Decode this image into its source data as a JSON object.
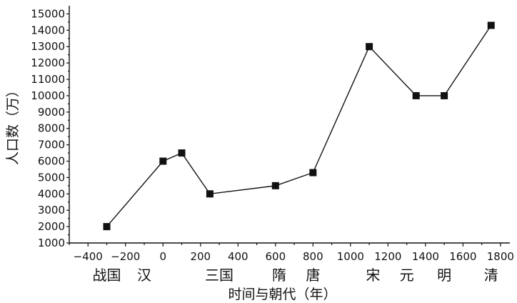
{
  "chart_data": {
    "type": "line",
    "title": "",
    "xlabel": "时间与朝代（年）",
    "ylabel": "人口数（万）",
    "xlim": [
      -500,
      1850
    ],
    "ylim": [
      1000,
      15500
    ],
    "x_ticks": [
      -400,
      -200,
      0,
      200,
      400,
      600,
      800,
      1000,
      1200,
      1400,
      1600,
      1800
    ],
    "y_ticks": [
      1000,
      2000,
      3000,
      4000,
      5000,
      6000,
      7000,
      8000,
      9000,
      10000,
      11000,
      12000,
      13000,
      14000,
      15000
    ],
    "grid": false,
    "legend": "none",
    "series": [
      {
        "x": [
          -300,
          0,
          100,
          250,
          600,
          800,
          1100,
          1350,
          1500,
          1750
        ],
        "y": [
          2000,
          6000,
          6500,
          4000,
          4500,
          5300,
          13000,
          10000,
          10000,
          14300
        ]
      }
    ],
    "era_labels": [
      {
        "text": "战国",
        "x": -300
      },
      {
        "text": "汉",
        "x": -100
      },
      {
        "text": "三国",
        "x": 300
      },
      {
        "text": "隋",
        "x": 620
      },
      {
        "text": "唐",
        "x": 800
      },
      {
        "text": "宋",
        "x": 1120
      },
      {
        "text": "元",
        "x": 1300
      },
      {
        "text": "明",
        "x": 1500
      },
      {
        "text": "清",
        "x": 1750
      }
    ]
  }
}
